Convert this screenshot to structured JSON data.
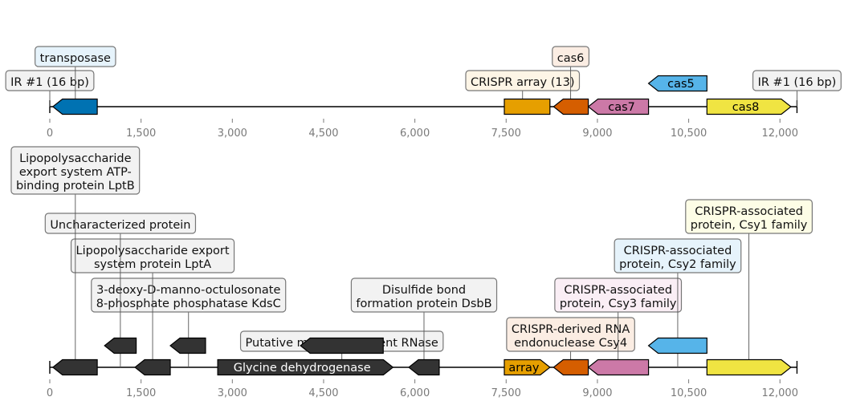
{
  "tracks": [
    {
      "id": "top",
      "ticks": [
        {
          "value": 0,
          "label": "0"
        },
        {
          "value": 1500,
          "label": "1,500"
        },
        {
          "value": 3000,
          "label": "3,000"
        },
        {
          "value": 4500,
          "label": "4,500"
        },
        {
          "value": 6000,
          "label": "6,000"
        },
        {
          "value": 7500,
          "label": "7,500"
        },
        {
          "value": 9000,
          "label": "9,000"
        },
        {
          "value": 10500,
          "label": "10,500"
        },
        {
          "value": 12000,
          "label": "12,000"
        }
      ],
      "features": [
        {
          "id": "transposase-gene",
          "start": 50,
          "end": 780,
          "strand": -1,
          "color": "#0072b2",
          "inline_label": "",
          "text_color": "#000000"
        },
        {
          "id": "crispr-array-13",
          "start": 7470,
          "end": 8220,
          "strand": 0,
          "color": "#e69f00",
          "inline_label": "",
          "text_color": "#000000"
        },
        {
          "id": "cas6-gene",
          "start": 8280,
          "end": 8850,
          "strand": -1,
          "color": "#d55e00",
          "inline_label": "",
          "text_color": "#000000"
        },
        {
          "id": "cas7-gene",
          "start": 8850,
          "end": 9840,
          "strand": -1,
          "color": "#cc79a7",
          "inline_label": "cas7",
          "text_color": "#000000"
        },
        {
          "id": "cas5-gene",
          "start": 9840,
          "end": 10800,
          "strand": -1,
          "color": "#56b4e9",
          "inline_label": "cas5",
          "text_color": "#000000",
          "row": 1
        },
        {
          "id": "cas8-gene",
          "start": 10800,
          "end": 12180,
          "strand": 1,
          "color": "#f0e442",
          "inline_label": "cas8",
          "text_color": "#000000"
        }
      ],
      "annotations": [
        {
          "id": "ir-left",
          "text": [
            "IR #1 (16 bp)"
          ],
          "x": 0,
          "level": 1,
          "bg": "#f2f2f2"
        },
        {
          "id": "transposase",
          "text": [
            "transposase"
          ],
          "x": 420,
          "level": 2,
          "bg": "#e6f3fb"
        },
        {
          "id": "crispr-array",
          "text": [
            "CRISPR array (13)"
          ],
          "x": 7770,
          "level": 1,
          "bg": "#fdf5e6"
        },
        {
          "id": "cas6",
          "text": [
            "cas6"
          ],
          "x": 8560,
          "level": 2,
          "bg": "#fbede3"
        },
        {
          "id": "ir-right",
          "text": [
            "IR #1 (16 bp)"
          ],
          "x": 12280,
          "level": 1,
          "bg": "#f2f2f2"
        }
      ]
    },
    {
      "id": "bottom",
      "ticks": [
        {
          "value": 0,
          "label": "0"
        },
        {
          "value": 1500,
          "label": "1,500"
        },
        {
          "value": 3000,
          "label": "3,000"
        },
        {
          "value": 4500,
          "label": "4,500"
        },
        {
          "value": 6000,
          "label": "6,000"
        },
        {
          "value": 7500,
          "label": "7,500"
        },
        {
          "value": 9000,
          "label": "9,000"
        },
        {
          "value": 10500,
          "label": "10,500"
        },
        {
          "value": 12000,
          "label": "12,000"
        }
      ],
      "features": [
        {
          "id": "lptb-gene",
          "start": 50,
          "end": 780,
          "strand": -1,
          "color": "#333333",
          "inline_label": "",
          "text_color": "#ffffff"
        },
        {
          "id": "kdsc-gene",
          "start": 900,
          "end": 1420,
          "strand": -1,
          "color": "#333333",
          "inline_label": "",
          "text_color": "#ffffff",
          "row": 1
        },
        {
          "id": "lpta-gene",
          "start": 1400,
          "end": 1980,
          "strand": -1,
          "color": "#333333",
          "inline_label": "",
          "text_color": "#ffffff"
        },
        {
          "id": "uncharacterized-gene",
          "start": 1980,
          "end": 2560,
          "strand": -1,
          "color": "#333333",
          "inline_label": "",
          "text_color": "#ffffff",
          "row": 1
        },
        {
          "id": "glycine-dehydrogenase-gene",
          "start": 2760,
          "end": 5640,
          "strand": 1,
          "color": "#333333",
          "inline_label": "Glycine dehydrogenase",
          "text_color": "#ffffff"
        },
        {
          "id": "rnase-gene",
          "start": 4120,
          "end": 5480,
          "strand": -1,
          "color": "#333333",
          "inline_label": "",
          "text_color": "#ffffff",
          "row": 1
        },
        {
          "id": "dsbb-gene",
          "start": 5900,
          "end": 6400,
          "strand": -1,
          "color": "#333333",
          "inline_label": "",
          "text_color": "#ffffff"
        },
        {
          "id": "array-gene",
          "start": 7470,
          "end": 8220,
          "strand": 1,
          "color": "#e69f00",
          "inline_label": "array",
          "text_color": "#000000"
        },
        {
          "id": "csy4-gene",
          "start": 8280,
          "end": 8850,
          "strand": -1,
          "color": "#d55e00",
          "inline_label": "",
          "text_color": "#000000"
        },
        {
          "id": "csy3-gene",
          "start": 8850,
          "end": 9840,
          "strand": -1,
          "color": "#cc79a7",
          "inline_label": "",
          "text_color": "#000000"
        },
        {
          "id": "csy2-gene",
          "start": 9840,
          "end": 10800,
          "strand": -1,
          "color": "#56b4e9",
          "inline_label": "",
          "text_color": "#000000",
          "row": 1
        },
        {
          "id": "csy1-gene",
          "start": 10800,
          "end": 12180,
          "strand": 1,
          "color": "#f0e442",
          "inline_label": "",
          "text_color": "#000000"
        }
      ],
      "annotations": [
        {
          "id": "rnase",
          "text": [
            "Putative metal-dependent RNase"
          ],
          "x": 4800,
          "level": 1,
          "bg": "#f2f2f2"
        },
        {
          "id": "csy4",
          "text": [
            "CRISPR-derived RNA",
            "endonuclease Csy4"
          ],
          "x": 8560,
          "level": 1,
          "bg": "#fbede3"
        },
        {
          "id": "kdsc",
          "text": [
            "3-deoxy-D-manno-octulosonate",
            "8-phosphate phosphatase KdsC"
          ],
          "x": 2280,
          "level": 2,
          "bg": "#f2f2f2"
        },
        {
          "id": "dsbb",
          "text": [
            "Disulfide bond",
            "formation protein DsbB"
          ],
          "x": 6150,
          "level": 2,
          "bg": "#f2f2f2"
        },
        {
          "id": "csy3",
          "text": [
            "CRISPR-associated",
            "protein, Csy3 family"
          ],
          "x": 9340,
          "level": 2,
          "bg": "#faeef5"
        },
        {
          "id": "lpta",
          "text": [
            "Lipopolysaccharide export",
            "system protein LptA"
          ],
          "x": 1690,
          "level": 3,
          "bg": "#f2f2f2"
        },
        {
          "id": "csy2",
          "text": [
            "CRISPR-associated",
            "protein, Csy2 family"
          ],
          "x": 10320,
          "level": 3,
          "bg": "#e6f3fb"
        },
        {
          "id": "uncharacterized",
          "text": [
            "Uncharacterized protein"
          ],
          "x": 1160,
          "level": 4,
          "bg": "#f2f2f2"
        },
        {
          "id": "csy1",
          "text": [
            "CRISPR-associated",
            "protein, Csy1 family"
          ],
          "x": 11490,
          "level": 4,
          "bg": "#fdfde6"
        },
        {
          "id": "lptb",
          "text": [
            "Lipopolysaccharide",
            "export system ATP-",
            "binding protein LptB"
          ],
          "x": 420,
          "level": 5,
          "bg": "#f2f2f2"
        }
      ]
    }
  ]
}
